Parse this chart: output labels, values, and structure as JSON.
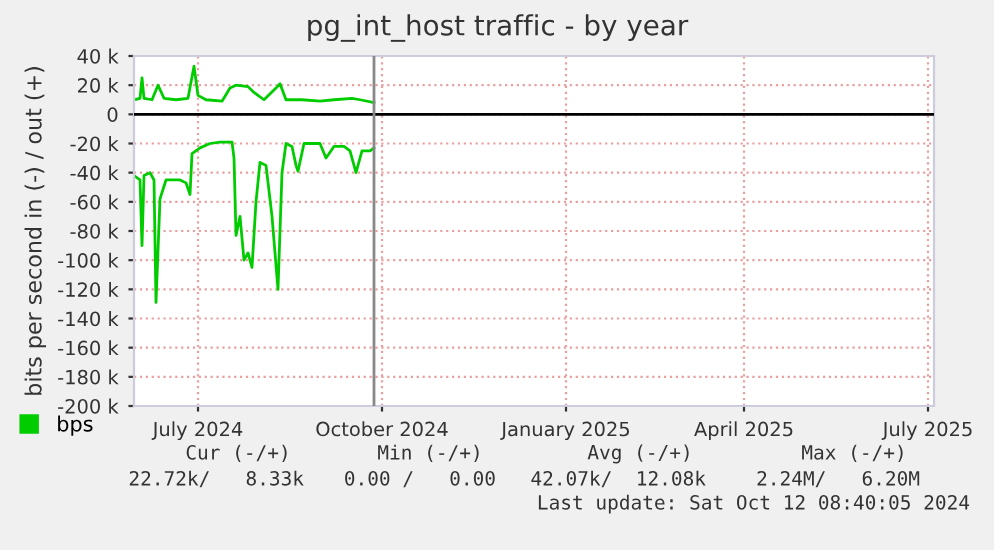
{
  "chart_data": {
    "type": "line",
    "title": "pg_int_host traffic - by year",
    "ylabel": "bits per second in (-) / out (+)",
    "xlim": [
      "2024-06-14",
      "2025-07-19"
    ],
    "xticks": [
      {
        "value": "2024-07-16",
        "label": "July 2024"
      },
      {
        "value": "2024-10-16",
        "label": "October 2024"
      },
      {
        "value": "2025-01-16",
        "label": "January 2025"
      },
      {
        "value": "2025-04-15",
        "label": "April 2025"
      },
      {
        "value": "2025-07-16",
        "label": "July 2025"
      }
    ],
    "ylim": [
      -200000,
      40000
    ],
    "yticks": [
      {
        "value": -200000,
        "label": "-200 k"
      },
      {
        "value": -180000,
        "label": "-180 k"
      },
      {
        "value": -160000,
        "label": "-160 k"
      },
      {
        "value": -140000,
        "label": "-140 k"
      },
      {
        "value": -120000,
        "label": "-120 k"
      },
      {
        "value": -100000,
        "label": "-100 k"
      },
      {
        "value": -80000,
        "label": "-80 k"
      },
      {
        "value": -60000,
        "label": "-60 k"
      },
      {
        "value": -40000,
        "label": "-40 k"
      },
      {
        "value": -20000,
        "label": "-20 k"
      },
      {
        "value": 0,
        "label": "0"
      },
      {
        "value": 20000,
        "label": "20 k"
      },
      {
        "value": 40000,
        "label": "40 k"
      }
    ],
    "grid": true,
    "legend": "bottom left",
    "series": [
      {
        "name": "bps",
        "color": "#00cc00",
        "x": [
          "2024-06-14",
          "2024-06-17",
          "2024-06-18",
          "2024-06-19",
          "2024-06-22",
          "2024-06-24",
          "2024-06-25",
          "2024-06-27",
          "2024-06-30",
          "2024-07-07",
          "2024-07-10",
          "2024-07-12",
          "2024-07-13",
          "2024-07-17",
          "2024-07-22",
          "2024-07-27",
          "2024-08-02",
          "2024-08-03",
          "2024-08-04",
          "2024-08-06",
          "2024-08-08",
          "2024-08-10",
          "2024-08-12",
          "2024-08-14",
          "2024-08-16",
          "2024-08-19",
          "2024-08-22",
          "2024-08-25",
          "2024-08-27",
          "2024-08-29",
          "2024-09-01",
          "2024-09-03",
          "2024-09-04",
          "2024-09-07",
          "2024-09-15",
          "2024-09-18",
          "2024-09-22",
          "2024-09-27",
          "2024-09-30",
          "2024-10-03",
          "2024-10-06",
          "2024-10-10",
          "2024-10-12"
        ],
        "values": [
          -42000,
          -45000,
          -90000,
          -42000,
          -40000,
          -45000,
          -129000,
          -58000,
          -45000,
          -45000,
          -47000,
          -55000,
          -27000,
          -23000,
          -20000,
          -19000,
          -19000,
          -30000,
          -83000,
          -70000,
          -100000,
          -95000,
          -105000,
          -60000,
          -33000,
          -35000,
          -70000,
          -120000,
          -40000,
          -20000,
          -22000,
          -35000,
          -39000,
          -20000,
          -20000,
          -30000,
          -22000,
          -22000,
          -25000,
          -40000,
          -25000,
          -25000,
          -23000
        ]
      },
      {
        "color": "#00cc00",
        "x": [
          "2024-06-14",
          "2024-06-17",
          "2024-06-18",
          "2024-06-19",
          "2024-06-23",
          "2024-06-26",
          "2024-06-29",
          "2024-07-05",
          "2024-07-11",
          "2024-07-14",
          "2024-07-16",
          "2024-07-20",
          "2024-07-28",
          "2024-08-01",
          "2024-08-04",
          "2024-08-10",
          "2024-08-13",
          "2024-08-18",
          "2024-08-24",
          "2024-08-26",
          "2024-08-29",
          "2024-09-06",
          "2024-09-15",
          "2024-09-22",
          "2024-10-01",
          "2024-10-05",
          "2024-10-12"
        ],
        "values": [
          10000,
          11000,
          25000,
          11000,
          10000,
          20000,
          11000,
          10000,
          11000,
          33000,
          13000,
          10000,
          9000,
          18000,
          20000,
          19000,
          15000,
          10000,
          18000,
          21000,
          10000,
          10000,
          9000,
          10000,
          11000,
          10000,
          8000
        ]
      }
    ],
    "ref_lines": [
      {
        "axis": "y",
        "value": 0,
        "color": "#000000"
      },
      {
        "axis": "x",
        "value": "2024-10-12",
        "color": "#888888"
      }
    ],
    "annotations": [
      "Cur (-/+)",
      "Min (-/+)",
      "Avg (-/+)",
      "Max (-/+)",
      "22.72k/   8.33k",
      "0.00 /   0.00",
      "42.07k/  12.08k",
      "2.24M/   6.20M",
      "Last update: Sat Oct 12 08:40:05 2024"
    ]
  }
}
